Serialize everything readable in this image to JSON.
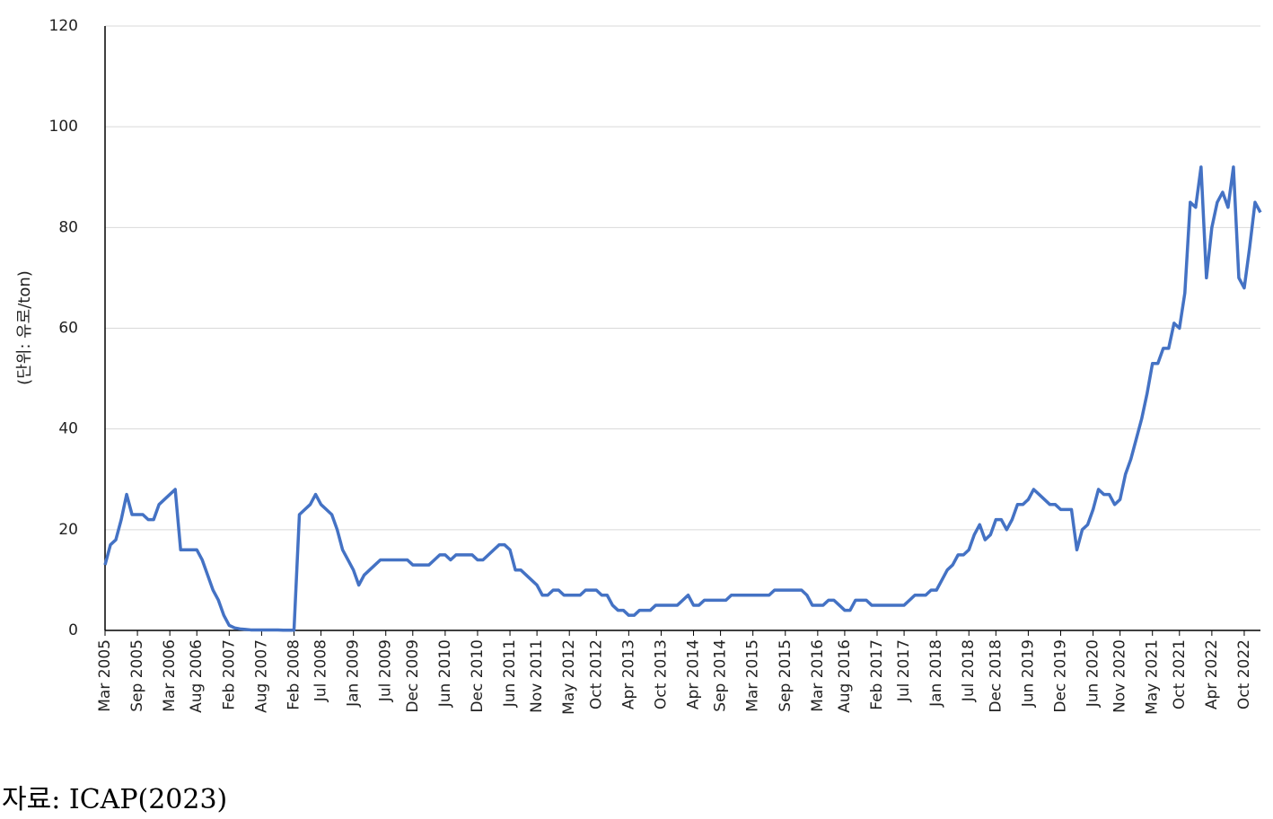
{
  "chart_data": {
    "type": "line",
    "y_label": "(단위: 유로/ton)",
    "source": "자료: ICAP(2023)",
    "x": [
      "Mar 2005",
      "Apr 2005",
      "May 2005",
      "Jun 2005",
      "Jul 2005",
      "Aug 2005",
      "Sep 2005",
      "Oct 2005",
      "Nov 2005",
      "Dec 2005",
      "Jan 2006",
      "Feb 2006",
      "Mar 2006",
      "Apr 2006",
      "May 2006",
      "Jun 2006",
      "Jul 2006",
      "Aug 2006",
      "Sep 2006",
      "Oct 2006",
      "Nov 2006",
      "Dec 2006",
      "Jan 2007",
      "Feb 2007",
      "Mar 2007",
      "Apr 2007",
      "May 2007",
      "Jun 2007",
      "Jul 2007",
      "Aug 2007",
      "Sep 2007",
      "Oct 2007",
      "Nov 2007",
      "Dec 2007",
      "Jan 2008",
      "Feb 2008",
      "Mar 2008",
      "Apr 2008",
      "May 2008",
      "Jun 2008",
      "Jul 2008",
      "Aug 2008",
      "Sep 2008",
      "Oct 2008",
      "Nov 2008",
      "Dec 2008",
      "Jan 2009",
      "Feb 2009",
      "Mar 2009",
      "Apr 2009",
      "May 2009",
      "Jun 2009",
      "Jul 2009",
      "Aug 2009",
      "Sep 2009",
      "Oct 2009",
      "Nov 2009",
      "Dec 2009",
      "Jan 2010",
      "Feb 2010",
      "Mar 2010",
      "Apr 2010",
      "May 2010",
      "Jun 2010",
      "Jul 2010",
      "Aug 2010",
      "Sep 2010",
      "Oct 2010",
      "Nov 2010",
      "Dec 2010",
      "Jan 2011",
      "Feb 2011",
      "Mar 2011",
      "Apr 2011",
      "May 2011",
      "Jun 2011",
      "Jul 2011",
      "Aug 2011",
      "Sep 2011",
      "Oct 2011",
      "Nov 2011",
      "Dec 2011",
      "Jan 2012",
      "Feb 2012",
      "Mar 2012",
      "Apr 2012",
      "May 2012",
      "Jun 2012",
      "Jul 2012",
      "Aug 2012",
      "Sep 2012",
      "Oct 2012",
      "Nov 2012",
      "Dec 2012",
      "Jan 2013",
      "Feb 2013",
      "Mar 2013",
      "Apr 2013",
      "May 2013",
      "Jun 2013",
      "Jul 2013",
      "Aug 2013",
      "Sep 2013",
      "Oct 2013",
      "Nov 2013",
      "Dec 2013",
      "Jan 2014",
      "Feb 2014",
      "Mar 2014",
      "Apr 2014",
      "May 2014",
      "Jun 2014",
      "Jul 2014",
      "Aug 2014",
      "Sep 2014",
      "Oct 2014",
      "Nov 2014",
      "Dec 2014",
      "Jan 2015",
      "Feb 2015",
      "Mar 2015",
      "Apr 2015",
      "May 2015",
      "Jun 2015",
      "Jul 2015",
      "Aug 2015",
      "Sep 2015",
      "Oct 2015",
      "Nov 2015",
      "Dec 2015",
      "Jan 2016",
      "Feb 2016",
      "Mar 2016",
      "Apr 2016",
      "May 2016",
      "Jun 2016",
      "Jul 2016",
      "Aug 2016",
      "Sep 2016",
      "Oct 2016",
      "Nov 2016",
      "Dec 2016",
      "Jan 2017",
      "Feb 2017",
      "Mar 2017",
      "Apr 2017",
      "May 2017",
      "Jun 2017",
      "Jul 2017",
      "Aug 2017",
      "Sep 2017",
      "Oct 2017",
      "Nov 2017",
      "Dec 2017",
      "Jan 2018",
      "Feb 2018",
      "Mar 2018",
      "Apr 2018",
      "May 2018",
      "Jun 2018",
      "Jul 2018",
      "Aug 2018",
      "Sep 2018",
      "Oct 2018",
      "Nov 2018",
      "Dec 2018",
      "Jan 2019",
      "Feb 2019",
      "Mar 2019",
      "Apr 2019",
      "May 2019",
      "Jun 2019",
      "Jul 2019",
      "Aug 2019",
      "Sep 2019",
      "Oct 2019",
      "Nov 2019",
      "Dec 2019",
      "Jan 2020",
      "Feb 2020",
      "Mar 2020",
      "Apr 2020",
      "May 2020",
      "Jun 2020",
      "Jul 2020",
      "Aug 2020",
      "Sep 2020",
      "Oct 2020",
      "Nov 2020",
      "Dec 2020",
      "Jan 2021",
      "Feb 2021",
      "Mar 2021",
      "Apr 2021",
      "May 2021",
      "Jun 2021",
      "Jul 2021",
      "Aug 2021",
      "Sep 2021",
      "Oct 2021",
      "Nov 2021",
      "Dec 2021",
      "Jan 2022",
      "Feb 2022",
      "Mar 2022",
      "Apr 2022",
      "May 2022",
      "Jun 2022",
      "Jul 2022",
      "Aug 2022",
      "Sep 2022",
      "Oct 2022",
      "Nov 2022",
      "Dec 2022",
      "Jan 2023"
    ],
    "series": [
      {
        "color": "#4472c4",
        "values": [
          13,
          17,
          18,
          22,
          27,
          23,
          23,
          23,
          22,
          22,
          25,
          26,
          27,
          28,
          16,
          16,
          16,
          16,
          14,
          11,
          8,
          6,
          3,
          1,
          0.5,
          0.3,
          0.2,
          0.1,
          0.1,
          0.1,
          0.1,
          0.1,
          0.1,
          0.05,
          0.05,
          0.05,
          23,
          24,
          25,
          27,
          25,
          24,
          23,
          20,
          16,
          14,
          12,
          9,
          11,
          12,
          13,
          14,
          14,
          14,
          14,
          14,
          14,
          13,
          13,
          13,
          13,
          14,
          15,
          15,
          14,
          15,
          15,
          15,
          15,
          14,
          14,
          15,
          16,
          17,
          17,
          16,
          12,
          12,
          11,
          10,
          9,
          7,
          7,
          8,
          8,
          7,
          7,
          7,
          7,
          8,
          8,
          8,
          7,
          7,
          5,
          4,
          4,
          3,
          3,
          4,
          4,
          4,
          5,
          5,
          5,
          5,
          5,
          6,
          7,
          5,
          5,
          6,
          6,
          6,
          6,
          6,
          7,
          7,
          7,
          7,
          7,
          7,
          7,
          7,
          8,
          8,
          8,
          8,
          8,
          8,
          7,
          5,
          5,
          5,
          6,
          6,
          5,
          4,
          4,
          6,
          6,
          6,
          5,
          5,
          5,
          5,
          5,
          5,
          5,
          6,
          7,
          7,
          7,
          8,
          8,
          10,
          12,
          13,
          15,
          15,
          16,
          19,
          21,
          18,
          19,
          22,
          22,
          20,
          22,
          25,
          25,
          26,
          28,
          27,
          26,
          25,
          25,
          24,
          24,
          24,
          16,
          20,
          21,
          24,
          28,
          27,
          27,
          25,
          26,
          31,
          34,
          38,
          42,
          47,
          53,
          53,
          56,
          56,
          61,
          60,
          67,
          85,
          84,
          92,
          70,
          80,
          85,
          87,
          84,
          92,
          70,
          68,
          76,
          85,
          83
        ]
      }
    ],
    "xticks": [
      "Mar 2005",
      "Sep 2005",
      "Mar 2006",
      "Aug 2006",
      "Feb 2007",
      "Aug 2007",
      "Feb 2008",
      "Jul 2008",
      "Jan 2009",
      "Jul 2009",
      "Dec 2009",
      "Jun 2010",
      "Dec 2010",
      "Jun 2011",
      "Nov 2011",
      "May 2012",
      "Oct 2012",
      "Apr 2013",
      "Oct 2013",
      "Apr 2014",
      "Sep 2014",
      "Mar 2015",
      "Sep 2015",
      "Mar 2016",
      "Aug 2016",
      "Feb 2017",
      "Jul 2017",
      "Jan 2018",
      "Jul 2018",
      "Dec 2018",
      "Jun 2019",
      "Dec 2019",
      "Jun 2020",
      "Nov 2020",
      "May 2021",
      "Oct 2021",
      "Apr 2022",
      "Oct 2022"
    ],
    "ylim": [
      0,
      120
    ],
    "yticks": [
      0,
      20,
      40,
      60,
      80,
      100,
      120
    ],
    "grid": true
  }
}
